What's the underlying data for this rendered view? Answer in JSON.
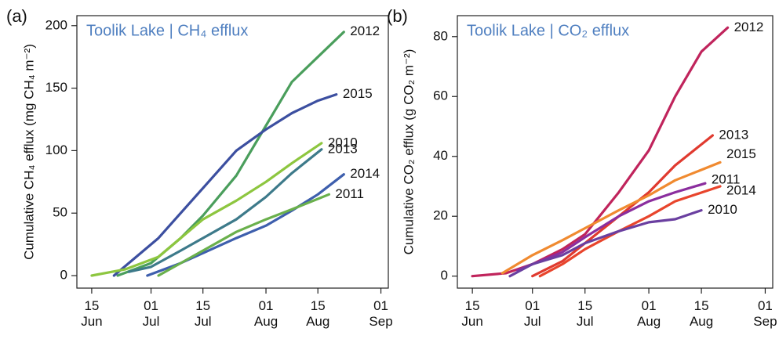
{
  "chart_data": [
    {
      "type": "line",
      "panel_label": "(a)",
      "title": "Toolik Lake | CH₄ efflux",
      "y_label": "Cumulative CH₄ efflux (mg CH₄ m⁻²)",
      "xlim": [
        162,
        246
      ],
      "ylim": [
        -10,
        208
      ],
      "xticks": [
        {
          "value": 166,
          "label": "15 Jun"
        },
        {
          "value": 182,
          "label": "01 Jul"
        },
        {
          "value": 196,
          "label": "15 Jul"
        },
        {
          "value": 213,
          "label": "01 Aug"
        },
        {
          "value": 227,
          "label": "15 Aug"
        },
        {
          "value": 244,
          "label": "01 Sep"
        }
      ],
      "yticks": [
        0,
        50,
        100,
        150,
        200
      ],
      "series": [
        {
          "name": "2012",
          "color": "#4a9e5c",
          "x": [
            173,
            182,
            190,
            196,
            205,
            213,
            220,
            227,
            234
          ],
          "values": [
            0,
            10,
            30,
            48,
            80,
            120,
            155,
            175,
            195
          ]
        },
        {
          "name": "2015",
          "color": "#3c4fa0",
          "x": [
            172,
            178,
            184,
            190,
            196,
            205,
            213,
            220,
            227,
            232
          ],
          "values": [
            0,
            15,
            30,
            50,
            70,
            100,
            117,
            130,
            140,
            145
          ]
        },
        {
          "name": "2010",
          "color": "#8dc63f",
          "x": [
            166,
            175,
            184,
            190,
            196,
            205,
            213,
            220,
            228
          ],
          "values": [
            0,
            5,
            15,
            30,
            45,
            60,
            75,
            90,
            106
          ]
        },
        {
          "name": "2013",
          "color": "#3d7a8a",
          "x": [
            176,
            182,
            190,
            196,
            205,
            213,
            220,
            228
          ],
          "values": [
            3,
            7,
            20,
            30,
            45,
            63,
            82,
            101
          ]
        },
        {
          "name": "2014",
          "color": "#3e5fad",
          "x": [
            181,
            190,
            196,
            205,
            213,
            220,
            227,
            234
          ],
          "values": [
            0,
            10,
            18,
            30,
            40,
            52,
            65,
            81
          ]
        },
        {
          "name": "2011",
          "color": "#6ab04c",
          "x": [
            184,
            190,
            196,
            205,
            213,
            220,
            230
          ],
          "values": [
            0,
            10,
            20,
            35,
            45,
            53,
            65
          ]
        }
      ]
    },
    {
      "type": "line",
      "panel_label": "(b)",
      "title": "Toolik Lake | CO₂ efflux",
      "y_label": "Cumulative CO₂ efflux (g CO₂ m⁻²)",
      "xlim": [
        162,
        246
      ],
      "ylim": [
        -4,
        87
      ],
      "xticks": [
        {
          "value": 166,
          "label": "15 Jun"
        },
        {
          "value": 182,
          "label": "01 Jul"
        },
        {
          "value": 196,
          "label": "15 Jul"
        },
        {
          "value": 213,
          "label": "01 Aug"
        },
        {
          "value": 227,
          "label": "15 Aug"
        },
        {
          "value": 244,
          "label": "01 Sep"
        }
      ],
      "yticks": [
        0,
        20,
        40,
        60,
        80
      ],
      "series": [
        {
          "name": "2012",
          "color": "#c0245c",
          "x": [
            166,
            175,
            182,
            190,
            196,
            205,
            213,
            220,
            227,
            234
          ],
          "values": [
            0,
            1,
            4,
            9,
            14,
            28,
            42,
            60,
            75,
            83
          ]
        },
        {
          "name": "2013",
          "color": "#e03a2f",
          "x": [
            182,
            190,
            196,
            205,
            213,
            220,
            230
          ],
          "values": [
            0,
            5,
            11,
            20,
            28,
            37,
            47
          ]
        },
        {
          "name": "2015",
          "color": "#f08a30",
          "x": [
            174,
            182,
            190,
            196,
            205,
            213,
            220,
            232
          ],
          "values": [
            1,
            7,
            12,
            16,
            22,
            27,
            32,
            38
          ]
        },
        {
          "name": "2011",
          "color": "#8b2e9e",
          "x": [
            178,
            190,
            196,
            205,
            213,
            220,
            228
          ],
          "values": [
            2,
            8,
            13,
            20,
            25,
            28,
            31
          ]
        },
        {
          "name": "2014",
          "color": "#e8452c",
          "x": [
            184,
            190,
            196,
            205,
            213,
            220,
            232
          ],
          "values": [
            0,
            4,
            9,
            15,
            20,
            25,
            30
          ]
        },
        {
          "name": "2010",
          "color": "#6a3fa0",
          "x": [
            176,
            182,
            190,
            196,
            205,
            213,
            220,
            227
          ],
          "values": [
            0,
            4,
            7,
            11,
            15,
            18,
            19,
            22
          ]
        }
      ]
    }
  ]
}
